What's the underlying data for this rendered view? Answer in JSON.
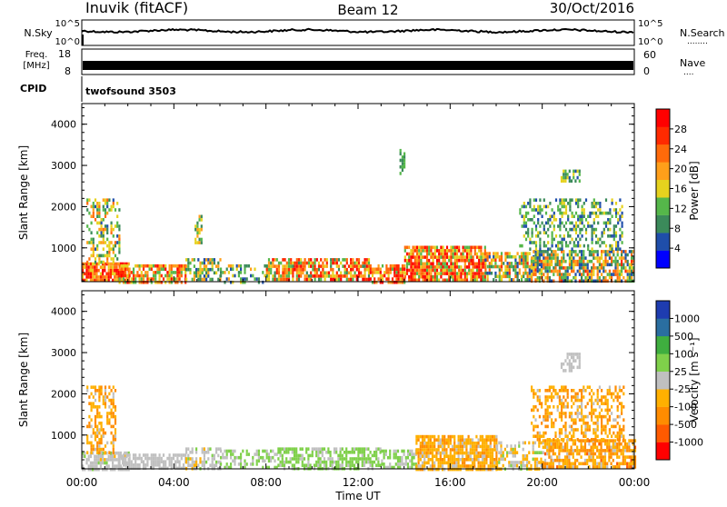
{
  "header": {
    "station": "Inuvik (fitACF)",
    "beam": "Beam 12",
    "date": "30/Oct/2016"
  },
  "panels": {
    "nsky": {
      "left_label": "N.Sky",
      "left_ticks": [
        "10^5",
        "10^0"
      ],
      "right_ticks": [
        "10^5",
        "10^0"
      ],
      "right_label": "N.Search",
      "right_label_dots": "........"
    },
    "freq": {
      "left_label_top": "Freq.",
      "left_label_unit": "[MHz]",
      "left_ticks": [
        "18",
        "8"
      ],
      "right_ticks": [
        "60",
        "0"
      ],
      "right_label": "Nave",
      "right_label_dots": "...."
    },
    "cpid": {
      "label": "CPID",
      "value": "twofsound 3503"
    }
  },
  "colors": {
    "power": [
      "#0000ff",
      "#1f4eaa",
      "#3b8a5a",
      "#55b74a",
      "#e6d21e",
      "#ff9f1a",
      "#ff6a0a",
      "#ff2a00",
      "#ff0000"
    ],
    "velocity": [
      "#ff0000",
      "#ff5a00",
      "#ff8c00",
      "#ffb000",
      "#c0c0c0",
      "#7fd04a",
      "#3fae3f",
      "#2a6ea0",
      "#1e3cb0"
    ],
    "trace": "#000000"
  },
  "chart_data": [
    {
      "type": "heatmap",
      "name": "power",
      "ylabel": "Slant Range [km]",
      "xlabel": "",
      "xlim": [
        0,
        24
      ],
      "ylim": [
        180,
        4500
      ],
      "x_ticks": [
        "00:00",
        "04:00",
        "08:00",
        "12:00",
        "16:00",
        "20:00",
        "00:00"
      ],
      "y_ticks": [
        1000,
        2000,
        3000,
        4000
      ],
      "colorbar_label": "Power [dB]",
      "colorbar_ticks": [
        "28",
        "24",
        "20",
        "16",
        "12",
        "8",
        "4"
      ],
      "colorbar_range": [
        0,
        30
      ],
      "regions": [
        {
          "t0": 0.0,
          "t1": 2.0,
          "r0": 200,
          "r1": 650,
          "v0": 14,
          "v1": 30,
          "density": 0.85
        },
        {
          "t0": 0.2,
          "t1": 1.6,
          "r0": 650,
          "r1": 2200,
          "v0": 6,
          "v1": 22,
          "density": 0.45
        },
        {
          "t0": 1.6,
          "t1": 4.5,
          "r0": 200,
          "r1": 600,
          "v0": 10,
          "v1": 28,
          "density": 0.75
        },
        {
          "t0": 4.5,
          "t1": 6.0,
          "r0": 200,
          "r1": 750,
          "v0": 4,
          "v1": 20,
          "density": 0.6
        },
        {
          "t0": 4.9,
          "t1": 5.2,
          "r0": 1100,
          "r1": 1800,
          "v0": 8,
          "v1": 20,
          "density": 0.5
        },
        {
          "t0": 6.0,
          "t1": 8.0,
          "r0": 200,
          "r1": 600,
          "v0": 4,
          "v1": 18,
          "density": 0.45
        },
        {
          "t0": 8.0,
          "t1": 12.5,
          "r0": 200,
          "r1": 750,
          "v0": 8,
          "v1": 28,
          "density": 0.75
        },
        {
          "t0": 12.5,
          "t1": 14.0,
          "r0": 200,
          "r1": 600,
          "v0": 12,
          "v1": 30,
          "density": 0.8
        },
        {
          "t0": 14.0,
          "t1": 17.5,
          "r0": 200,
          "r1": 1050,
          "v0": 10,
          "v1": 30,
          "density": 0.85
        },
        {
          "t0": 17.5,
          "t1": 20.0,
          "r0": 200,
          "r1": 900,
          "v0": 4,
          "v1": 24,
          "density": 0.65
        },
        {
          "t0": 19.5,
          "t1": 24.0,
          "r0": 200,
          "r1": 950,
          "v0": 4,
          "v1": 24,
          "density": 0.7
        },
        {
          "t0": 19.0,
          "t1": 23.5,
          "r0": 1000,
          "r1": 2200,
          "v0": 4,
          "v1": 16,
          "density": 0.4
        },
        {
          "t0": 20.8,
          "t1": 21.6,
          "r0": 2600,
          "r1": 2900,
          "v0": 6,
          "v1": 16,
          "density": 0.55
        },
        {
          "t0": 13.8,
          "t1": 14.0,
          "r0": 2800,
          "r1": 3400,
          "v0": 6,
          "v1": 12,
          "density": 0.4
        }
      ]
    },
    {
      "type": "heatmap",
      "name": "velocity",
      "ylabel": "Slant Range [km]",
      "xlabel": "Time UT",
      "xlim": [
        0,
        24
      ],
      "ylim": [
        180,
        4500
      ],
      "x_ticks": [
        "00:00",
        "04:00",
        "08:00",
        "12:00",
        "16:00",
        "20:00",
        "00:00"
      ],
      "y_ticks": [
        1000,
        2000,
        3000,
        4000
      ],
      "colorbar_label": "Velocity [m s⁻¹]",
      "colorbar_ticks": [
        "1000",
        "500",
        "100",
        "25",
        "-25",
        "-100",
        "-500",
        "-1000"
      ],
      "colorbar_range": [
        -1200,
        1200
      ],
      "regions": [
        {
          "t0": 0.0,
          "t1": 2.0,
          "r0": 200,
          "r1": 600,
          "v0": -150,
          "v1": 150,
          "density": 0.7
        },
        {
          "t0": 0.2,
          "t1": 1.5,
          "r0": 600,
          "r1": 2200,
          "v0": -600,
          "v1": -50,
          "density": 0.45
        },
        {
          "t0": 1.6,
          "t1": 4.5,
          "r0": 200,
          "r1": 550,
          "v0": -40,
          "v1": 40,
          "density": 0.7
        },
        {
          "t0": 4.5,
          "t1": 6.0,
          "r0": 200,
          "r1": 700,
          "v0": -200,
          "v1": 200,
          "density": 0.55
        },
        {
          "t0": 6.0,
          "t1": 8.5,
          "r0": 200,
          "r1": 650,
          "v0": 20,
          "v1": 300,
          "density": 0.55
        },
        {
          "t0": 8.5,
          "t1": 13.0,
          "r0": 200,
          "r1": 700,
          "v0": 30,
          "v1": 400,
          "density": 0.65
        },
        {
          "t0": 13.0,
          "t1": 14.5,
          "r0": 200,
          "r1": 650,
          "v0": 30,
          "v1": 300,
          "density": 0.6
        },
        {
          "t0": 14.5,
          "t1": 18.0,
          "r0": 200,
          "r1": 1000,
          "v0": -500,
          "v1": -80,
          "density": 0.8
        },
        {
          "t0": 18.0,
          "t1": 20.0,
          "r0": 200,
          "r1": 850,
          "v0": -400,
          "v1": 200,
          "density": 0.55
        },
        {
          "t0": 20.0,
          "t1": 24.0,
          "r0": 200,
          "r1": 900,
          "v0": -700,
          "v1": -60,
          "density": 0.7
        },
        {
          "t0": 19.5,
          "t1": 23.5,
          "r0": 900,
          "r1": 2200,
          "v0": -600,
          "v1": -80,
          "density": 0.45
        },
        {
          "t0": 20.8,
          "t1": 21.6,
          "r0": 2600,
          "r1": 3000,
          "v0": -20,
          "v1": 20,
          "density": 0.6
        }
      ]
    }
  ]
}
